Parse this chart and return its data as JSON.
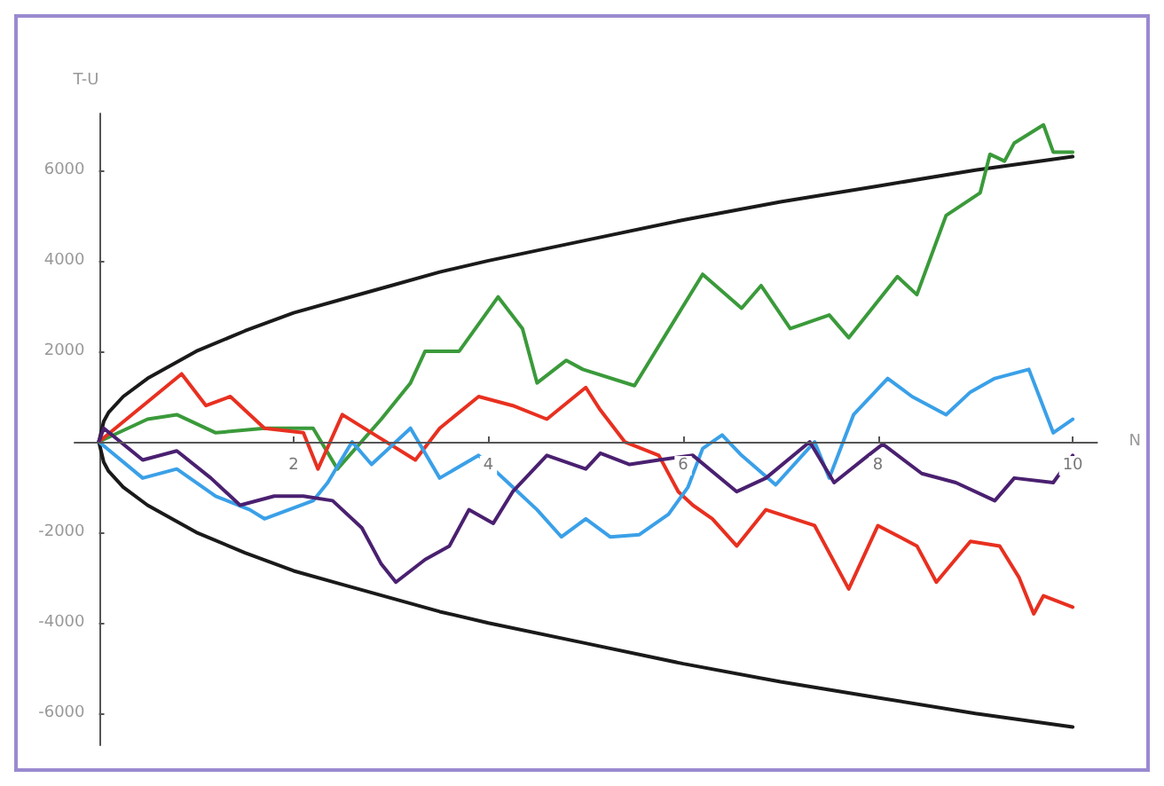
{
  "chart_data": {
    "type": "line",
    "xlabel": "N",
    "ylabel": "T-U",
    "xlim": [
      -0.25,
      10.25
    ],
    "ylim": [
      -6700,
      7250
    ],
    "xticks": [
      2,
      4,
      6,
      8,
      10
    ],
    "yticks": [
      -6000,
      -4000,
      -2000,
      2000,
      4000,
      6000
    ],
    "grid": false,
    "marker": "none",
    "line_style": "solid",
    "series": [
      {
        "color": "#1a1a1a",
        "x": [
          0,
          0.05,
          0.1,
          0.25,
          0.5,
          1,
          1.5,
          2,
          2.5,
          3,
          3.5,
          4,
          5,
          6,
          7,
          8,
          9,
          10
        ],
        "values": [
          0,
          450,
          650,
          1000,
          1400,
          2000,
          2450,
          2850,
          3150,
          3450,
          3750,
          4000,
          4450,
          4900,
          5300,
          5650,
          6000,
          6300
        ]
      },
      {
        "color": "#1a1a1a",
        "x": [
          0,
          0.05,
          0.1,
          0.25,
          0.5,
          1,
          1.5,
          2,
          2.5,
          3,
          3.5,
          4,
          5,
          6,
          7,
          8,
          9,
          10
        ],
        "values": [
          0,
          -450,
          -650,
          -1000,
          -1400,
          -2000,
          -2450,
          -2850,
          -3150,
          -3450,
          -3750,
          -4000,
          -4450,
          -4900,
          -5300,
          -5650,
          -6000,
          -6300
        ]
      },
      {
        "color": "#3a9a3a",
        "x": [
          0,
          0.5,
          0.8,
          1.2,
          1.7,
          2.2,
          2.45,
          2.9,
          3.2,
          3.35,
          3.7,
          4.1,
          4.35,
          4.5,
          4.8,
          4.97,
          5.5,
          6.2,
          6.6,
          6.8,
          7.1,
          7.5,
          7.7,
          8.2,
          8.4,
          8.7,
          9.05,
          9.15,
          9.3,
          9.4,
          9.7,
          9.8,
          10
        ],
        "values": [
          0,
          500,
          600,
          200,
          300,
          300,
          -600,
          500,
          1300,
          2000,
          2000,
          3200,
          2500,
          1300,
          1800,
          1600,
          1240,
          3700,
          2950,
          3450,
          2500,
          2800,
          2300,
          3650,
          3250,
          5000,
          5500,
          6350,
          6200,
          6600,
          7000,
          6400,
          6400
        ]
      },
      {
        "color": "#e83020",
        "x": [
          0,
          0.85,
          1.1,
          1.35,
          1.7,
          2.1,
          2.25,
          2.5,
          2.8,
          3.25,
          3.5,
          3.9,
          4.25,
          4.6,
          5,
          5.15,
          5.4,
          5.75,
          5.95,
          6.1,
          6.3,
          6.55,
          6.85,
          7.35,
          7.7,
          8,
          8.4,
          8.6,
          8.95,
          9.25,
          9.45,
          9.6,
          9.7,
          10
        ],
        "values": [
          0,
          1500,
          800,
          1000,
          300,
          200,
          -600,
          600,
          200,
          -400,
          300,
          1000,
          800,
          500,
          1200,
          700,
          0,
          -300,
          -1100,
          -1400,
          -1700,
          -2300,
          -1500,
          -1850,
          -3250,
          -1850,
          -2300,
          -3100,
          -2200,
          -2300,
          -3000,
          -3800,
          -3400,
          -3650
        ]
      },
      {
        "color": "#3aa0e8",
        "x": [
          0,
          0.45,
          0.8,
          1.2,
          1.55,
          1.7,
          2.2,
          2.35,
          2.6,
          2.8,
          3.2,
          3.5,
          3.9,
          4.25,
          4.5,
          4.75,
          5,
          5.25,
          5.55,
          5.85,
          6.05,
          6.2,
          6.4,
          6.6,
          6.95,
          7.35,
          7.5,
          7.75,
          8.1,
          8.35,
          8.7,
          8.95,
          9.2,
          9.55,
          9.8,
          10
        ],
        "values": [
          0,
          -800,
          -600,
          -1200,
          -1500,
          -1700,
          -1300,
          -900,
          0,
          -500,
          300,
          -800,
          -300,
          -1000,
          -1500,
          -2100,
          -1700,
          -2100,
          -2050,
          -1600,
          -1000,
          -150,
          150,
          -300,
          -950,
          0,
          -800,
          600,
          1400,
          1000,
          600,
          1100,
          1400,
          1600,
          200,
          500
        ]
      },
      {
        "color": "#4a2070",
        "x": [
          0,
          0.05,
          0.45,
          0.8,
          1.15,
          1.45,
          1.8,
          2.1,
          2.4,
          2.7,
          2.9,
          3.05,
          3.35,
          3.6,
          3.8,
          4.05,
          4.25,
          4.6,
          5,
          5.15,
          5.45,
          5.75,
          6.1,
          6.55,
          6.85,
          7.3,
          7.55,
          7.9,
          8.05,
          8.45,
          8.8,
          9.2,
          9.4,
          9.8,
          10
        ],
        "values": [
          0,
          300,
          -400,
          -200,
          -800,
          -1400,
          -1200,
          -1200,
          -1300,
          -1900,
          -2700,
          -3100,
          -2600,
          -2300,
          -1500,
          -1800,
          -1100,
          -300,
          -600,
          -250,
          -500,
          -400,
          -300,
          -1100,
          -800,
          0,
          -900,
          -300,
          -50,
          -700,
          -900,
          -1300,
          -800,
          -900,
          -300
        ]
      }
    ]
  }
}
